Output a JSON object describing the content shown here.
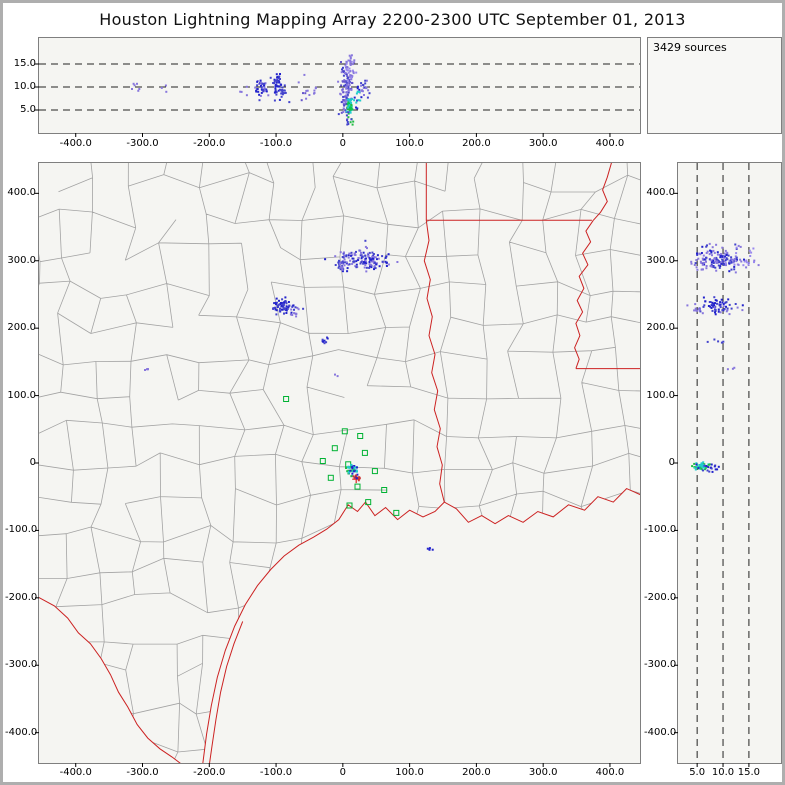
{
  "title": "Houston Lightning Mapping Array   2200-2300 UTC  September 01, 2013",
  "sources_label": "3429 sources",
  "colors": {
    "county_line": "#a3a3a3",
    "state_border": "#cc2222",
    "station_green": "#00b233",
    "center_cross": "#dd2222",
    "dashed_line": "#222222",
    "panel_bg": "#f5f5f2"
  },
  "chart_data": [
    {
      "id": "alt_vs_ew",
      "type": "scatter",
      "description": "Altitude (km) vs east-west distance (km), top panel",
      "xlim": [
        -455,
        445
      ],
      "ylim": [
        0,
        20.65
      ],
      "x_ticks": [
        -400,
        -300,
        -200,
        -100,
        0,
        100,
        200,
        300,
        400
      ],
      "x_tick_labels": [
        "-400.0",
        "-300.0",
        "-200.0",
        "-100.0",
        "0",
        "100.0",
        "200.0",
        "300.0",
        "400.0"
      ],
      "y_ticks": [
        15,
        10,
        5
      ],
      "y_tick_labels": [
        "15.0",
        "10.0",
        "5.0"
      ],
      "dashed_y": [
        5,
        10,
        15
      ],
      "clusters": [
        {
          "cx": -311,
          "cy": 9.8,
          "sx": 5,
          "sy": 0.9,
          "n": 6,
          "colors": [
            "#8877dd",
            "#4444cc"
          ]
        },
        {
          "cx": -268,
          "cy": 10.1,
          "sx": 3,
          "sy": 0.5,
          "n": 3,
          "colors": [
            "#8877dd"
          ]
        },
        {
          "cx": -150,
          "cy": 9.2,
          "sx": 3,
          "sy": 0.7,
          "n": 4,
          "colors": [
            "#8877dd"
          ]
        },
        {
          "cx": -120,
          "cy": 9.8,
          "sx": 6,
          "sy": 1.2,
          "n": 40,
          "colors": [
            "#4444cc",
            "#2222cc",
            "#8877dd"
          ]
        },
        {
          "cx": -98,
          "cy": 10.5,
          "sx": 3.5,
          "sy": 1.5,
          "n": 45,
          "colors": [
            "#2222cc",
            "#4444cc"
          ]
        },
        {
          "cx": -88,
          "cy": 8.6,
          "sx": 3,
          "sy": 0.8,
          "n": 12,
          "colors": [
            "#4444cc"
          ]
        },
        {
          "cx": -58,
          "cy": 9.5,
          "sx": 7,
          "sy": 0.8,
          "n": 9,
          "colors": [
            "#8877dd",
            "#6655cc"
          ]
        },
        {
          "cx": -40,
          "cy": 9.0,
          "sx": 3,
          "sy": 0.6,
          "n": 5,
          "colors": [
            "#8877dd"
          ]
        },
        {
          "cx": 5,
          "cy": 9.5,
          "sx": 5,
          "sy": 3.0,
          "n": 110,
          "colors": [
            "#6655cc",
            "#4444cc",
            "#8877dd"
          ]
        },
        {
          "cx": 12,
          "cy": 13.5,
          "sx": 4,
          "sy": 1.5,
          "n": 35,
          "colors": [
            "#8877dd",
            "#9988ee"
          ]
        },
        {
          "cx": 10,
          "cy": 5.6,
          "sx": 2.0,
          "sy": 0.8,
          "n": 50,
          "colors": [
            "#22bb44",
            "#00cc55",
            "#22cccc"
          ]
        },
        {
          "cx": 12,
          "cy": 3.0,
          "sx": 2.5,
          "sy": 1.0,
          "n": 10,
          "colors": [
            "#4444cc",
            "#22bb44"
          ]
        },
        {
          "cx": 33,
          "cy": 9.3,
          "sx": 3.5,
          "sy": 1.3,
          "n": 20,
          "colors": [
            "#4444cc",
            "#8877dd"
          ]
        },
        {
          "cx": 22,
          "cy": 7.5,
          "sx": 3,
          "sy": 1.5,
          "n": 15,
          "colors": [
            "#2222cc",
            "#22cccc"
          ]
        }
      ]
    },
    {
      "id": "plan_view",
      "type": "scatter",
      "description": "Plan view, north-south vs east-west distance (km)",
      "xlim": [
        -455,
        445
      ],
      "ylim": [
        -445,
        445
      ],
      "x_ticks": [
        -400,
        -300,
        -200,
        -100,
        0,
        100,
        200,
        300,
        400
      ],
      "x_tick_labels": [
        "-400.0",
        "-300.0",
        "-200.0",
        "-100.0",
        "0",
        "100.0",
        "200.0",
        "300.0",
        "400.0"
      ],
      "y_ticks": [
        400,
        300,
        200,
        100,
        0,
        -100,
        -200,
        -300,
        -400
      ],
      "y_tick_labels": [
        "400.0",
        "300.0",
        "200.0",
        "100.0",
        "0",
        "-100.0",
        "-200.0",
        "-300.0",
        "-400.0"
      ],
      "clusters": [
        {
          "cx": 30,
          "cy": 302,
          "sx": 18,
          "sy": 8,
          "n": 140,
          "colors": [
            "#2222cc",
            "#4444cc",
            "#8877dd"
          ]
        },
        {
          "cx": -2,
          "cy": 294,
          "sx": 6,
          "sy": 5,
          "n": 25,
          "colors": [
            "#4444cc",
            "#8877dd"
          ]
        },
        {
          "cx": -90,
          "cy": 234,
          "sx": 9,
          "sy": 6,
          "n": 65,
          "colors": [
            "#2222cc",
            "#4444cc"
          ]
        },
        {
          "cx": -70,
          "cy": 223,
          "sx": 4,
          "sy": 3,
          "n": 10,
          "colors": [
            "#8877dd"
          ]
        },
        {
          "cx": -26,
          "cy": 181,
          "sx": 3,
          "sy": 2.5,
          "n": 8,
          "colors": [
            "#2222cc",
            "#4444cc"
          ]
        },
        {
          "cx": -296,
          "cy": 140,
          "sx": 3,
          "sy": 2,
          "n": 4,
          "colors": [
            "#8877dd"
          ]
        },
        {
          "cx": 14,
          "cy": -10,
          "sx": 4.5,
          "sy": 4,
          "n": 45,
          "colors": [
            "#22bb44",
            "#22cccc",
            "#2222cc"
          ]
        },
        {
          "cx": 22,
          "cy": -22,
          "sx": 3,
          "sy": 3,
          "n": 10,
          "colors": [
            "#cc3333",
            "#2222cc"
          ]
        },
        {
          "cx": 130,
          "cy": -127,
          "sx": 2.5,
          "sy": 2,
          "n": 4,
          "colors": [
            "#2222cc"
          ]
        },
        {
          "cx": -8,
          "cy": 130,
          "sx": 2,
          "sy": 2,
          "n": 2,
          "colors": [
            "#8877dd"
          ]
        }
      ]
    },
    {
      "id": "alt_vs_ns",
      "type": "scatter",
      "description": "North-south distance (km) vs altitude (km), right panel",
      "xlim": [
        1.3,
        21.2
      ],
      "ylim": [
        -445,
        445
      ],
      "x_ticks": [
        5,
        10,
        15
      ],
      "x_tick_labels": [
        "5.0",
        "10.0",
        "15.0"
      ],
      "y_ticks": [
        400,
        300,
        200,
        100,
        0,
        -100,
        -200,
        -300,
        -400
      ],
      "y_tick_labels": [
        "400.0",
        "300.0",
        "200.0",
        "100.0",
        "0",
        "-100.0",
        "-200.0",
        "-300.0",
        "-400.0"
      ],
      "dashed_x": [
        5,
        10,
        15
      ],
      "clusters": [
        {
          "cx": 9,
          "cy": 303,
          "sx": 2.2,
          "sy": 9,
          "n": 120,
          "colors": [
            "#4444cc",
            "#8877dd",
            "#2222cc"
          ]
        },
        {
          "cx": 13.5,
          "cy": 300,
          "sx": 1.6,
          "sy": 10,
          "n": 30,
          "colors": [
            "#9988ee",
            "#8877dd"
          ]
        },
        {
          "cx": 5.5,
          "cy": 295,
          "sx": 1.0,
          "sy": 6,
          "n": 15,
          "colors": [
            "#8877dd"
          ]
        },
        {
          "cx": 8.5,
          "cy": 233,
          "sx": 1.8,
          "sy": 6,
          "n": 55,
          "colors": [
            "#2222cc",
            "#4444cc"
          ]
        },
        {
          "cx": 5.2,
          "cy": 228,
          "sx": 0.8,
          "sy": 4,
          "n": 10,
          "colors": [
            "#8877dd"
          ]
        },
        {
          "cx": 11.5,
          "cy": 224,
          "sx": 1.2,
          "sy": 3,
          "n": 8,
          "colors": [
            "#8877dd"
          ]
        },
        {
          "cx": 9.5,
          "cy": 181,
          "sx": 0.8,
          "sy": 2,
          "n": 5,
          "colors": [
            "#4444cc"
          ]
        },
        {
          "cx": 10.5,
          "cy": 140,
          "sx": 0.8,
          "sy": 1.5,
          "n": 3,
          "colors": [
            "#8877dd"
          ]
        },
        {
          "cx": 5.8,
          "cy": -6,
          "sx": 0.8,
          "sy": 3,
          "n": 45,
          "colors": [
            "#22bb44",
            "#22cccc"
          ]
        },
        {
          "cx": 7.5,
          "cy": -8,
          "sx": 1.5,
          "sy": 4,
          "n": 18,
          "colors": [
            "#2222cc",
            "#4444cc"
          ]
        }
      ]
    }
  ],
  "map": {
    "stations": [
      [
        -85,
        95
      ],
      [
        3,
        47
      ],
      [
        26,
        40
      ],
      [
        -12,
        22
      ],
      [
        33,
        15
      ],
      [
        -30,
        3
      ],
      [
        8,
        -2
      ],
      [
        48,
        -12
      ],
      [
        -18,
        -22
      ],
      [
        22,
        -35
      ],
      [
        62,
        -40
      ],
      [
        38,
        -58
      ],
      [
        10,
        -63
      ],
      [
        80,
        -74
      ]
    ],
    "center_cross": [
      20,
      -24
    ],
    "borders": [
      {
        "name": "tx-ar-border",
        "points": [
          [
            125,
            448
          ],
          [
            125,
            360
          ]
        ]
      },
      {
        "name": "la-ar-border-33n",
        "points": [
          [
            125,
            360
          ],
          [
            373,
            360
          ]
        ]
      },
      {
        "name": "ar-ms-river",
        "points": [
          [
            403,
            448
          ],
          [
            396,
            424
          ],
          [
            389,
            405
          ],
          [
            396,
            388
          ],
          [
            386,
            372
          ],
          [
            375,
            360
          ]
        ]
      },
      {
        "name": "la-ms-river",
        "points": [
          [
            375,
            360
          ],
          [
            364,
            344
          ],
          [
            371,
            328
          ],
          [
            359,
            311
          ],
          [
            367,
            294
          ],
          [
            354,
            277
          ],
          [
            361,
            259
          ],
          [
            351,
            241
          ],
          [
            359,
            224
          ],
          [
            349,
            207
          ],
          [
            355,
            189
          ],
          [
            347,
            171
          ],
          [
            354,
            154
          ],
          [
            349,
            140
          ]
        ]
      },
      {
        "name": "la-ms-border-31n",
        "points": [
          [
            349,
            140
          ],
          [
            448,
            140
          ]
        ]
      },
      {
        "name": "tx-la-sabine",
        "points": [
          [
            125,
            360
          ],
          [
            129,
            330
          ],
          [
            122,
            300
          ],
          [
            131,
            272
          ],
          [
            126,
            244
          ],
          [
            134,
            217
          ],
          [
            129,
            189
          ],
          [
            138,
            161
          ],
          [
            133,
            134
          ],
          [
            142,
            107
          ],
          [
            137,
            79
          ],
          [
            146,
            51
          ],
          [
            141,
            24
          ],
          [
            149,
            -3
          ],
          [
            145,
            -31
          ],
          [
            152,
            -58
          ]
        ]
      },
      {
        "name": "gulf-coast",
        "points": [
          [
            448,
            -48
          ],
          [
            425,
            -38
          ],
          [
            405,
            -58
          ],
          [
            382,
            -50
          ],
          [
            362,
            -70
          ],
          [
            338,
            -62
          ],
          [
            315,
            -80
          ],
          [
            292,
            -72
          ],
          [
            270,
            -88
          ],
          [
            248,
            -78
          ],
          [
            228,
            -90
          ],
          [
            208,
            -78
          ],
          [
            188,
            -88
          ],
          [
            170,
            -68
          ],
          [
            152,
            -58
          ],
          [
            138,
            -72
          ],
          [
            120,
            -80
          ],
          [
            100,
            -70
          ],
          [
            82,
            -84
          ],
          [
            64,
            -66
          ],
          [
            48,
            -78
          ],
          [
            34,
            -58
          ],
          [
            22,
            -72
          ],
          [
            8,
            -62
          ],
          [
            -6,
            -84
          ],
          [
            -24,
            -98
          ],
          [
            -44,
            -110
          ],
          [
            -66,
            -122
          ],
          [
            -88,
            -138
          ],
          [
            -108,
            -158
          ],
          [
            -128,
            -182
          ],
          [
            -146,
            -210
          ],
          [
            -162,
            -242
          ],
          [
            -176,
            -278
          ],
          [
            -188,
            -318
          ],
          [
            -197,
            -360
          ],
          [
            -204,
            -402
          ],
          [
            -210,
            -448
          ]
        ]
      },
      {
        "name": "barrier-island",
        "points": [
          [
            -150,
            -235
          ],
          [
            -163,
            -268
          ],
          [
            -174,
            -302
          ],
          [
            -183,
            -340
          ],
          [
            -190,
            -380
          ],
          [
            -196,
            -420
          ],
          [
            -200,
            -448
          ]
        ]
      },
      {
        "name": "rio-grande",
        "points": [
          [
            -458,
            -198
          ],
          [
            -432,
            -212
          ],
          [
            -412,
            -230
          ],
          [
            -396,
            -252
          ],
          [
            -378,
            -268
          ],
          [
            -362,
            -290
          ],
          [
            -348,
            -314
          ],
          [
            -336,
            -340
          ],
          [
            -322,
            -362
          ],
          [
            -308,
            -388
          ],
          [
            -292,
            -408
          ],
          [
            -274,
            -424
          ],
          [
            -256,
            -436
          ],
          [
            -240,
            -448
          ]
        ]
      }
    ]
  }
}
